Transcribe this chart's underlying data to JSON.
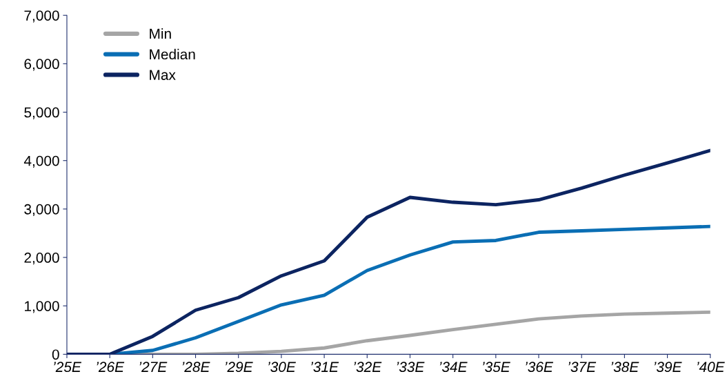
{
  "chart_data": {
    "type": "line",
    "categories": [
      "’25E",
      "’26E",
      "’27E",
      "’28E",
      "’29E",
      "’30E",
      "’31E",
      "’32E",
      "’33E",
      "’34E",
      "’35E",
      "’36E",
      "’37E",
      "’38E",
      "’39E",
      "’40E"
    ],
    "series": [
      {
        "name": "Min",
        "color": "#a5a5a5",
        "values": [
          0,
          0,
          0,
          0,
          20,
          60,
          130,
          280,
          390,
          510,
          620,
          730,
          790,
          830,
          850,
          870
        ]
      },
      {
        "name": "Median",
        "color": "#0a6eb4",
        "values": [
          0,
          0,
          80,
          340,
          680,
          1020,
          1220,
          1730,
          2050,
          2320,
          2350,
          2520,
          2550,
          2580,
          2610,
          2640
        ]
      },
      {
        "name": "Max",
        "color": "#0c2461",
        "values": [
          0,
          0,
          370,
          910,
          1170,
          1620,
          1930,
          2830,
          3240,
          3140,
          3090,
          3190,
          3430,
          3700,
          3950,
          4210
        ]
      }
    ],
    "ylim": [
      0,
      7000
    ],
    "yticks": [
      0,
      {
        "value": 1000,
        "label": "1,000"
      },
      {
        "value": 2000,
        "label": "2,000"
      },
      {
        "value": 3000,
        "label": "3,000"
      },
      {
        "value": 4000,
        "label": "4,000"
      },
      {
        "value": 5000,
        "label": "5,000"
      },
      {
        "value": 6000,
        "label": "6,000"
      },
      {
        "value": 7000,
        "label": "7,000"
      }
    ],
    "grid": false,
    "legend": "top left",
    "marker": "none",
    "line_style": "solid"
  }
}
